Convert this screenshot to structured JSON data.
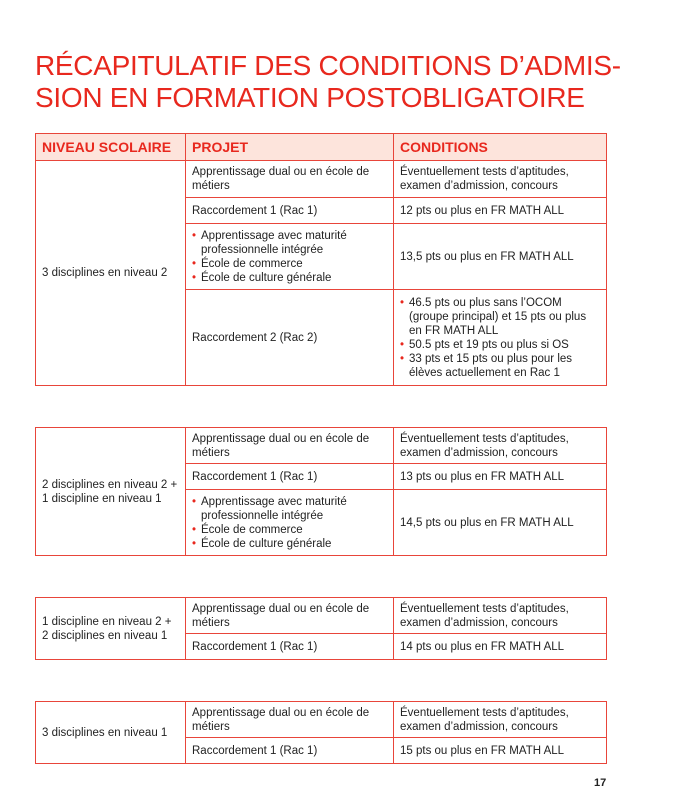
{
  "title_lines": [
    "RÉCAPITULATIF DES CONDITIONS D’ADMIS-",
    "SION EN FORMATION POSTOBLIGATOIRE"
  ],
  "headers": [
    "NIVEAU SCOLAIRE",
    "PROJET",
    "CONDITIONS"
  ],
  "common": {
    "dual": "Apprentissage dual ou en école de métiers",
    "tests": "Éventuellement tests d’aptitudes, examen d’admission, concours",
    "rac1": "Raccordement 1 (Rac 1)",
    "rac2": "Raccordement 2 (Rac 2)",
    "projects_list": [
      "Apprentissage avec maturité professionnelle intégrée",
      "École de commerce",
      "École de culture générale"
    ]
  },
  "tables": [
    {
      "level": "3 disciplines en niveau 2",
      "rac1_cond": "12 pts ou plus en FR MATH ALL",
      "list_cond": "13,5 pts ou plus en FR MATH ALL",
      "rac2_cond": [
        "46.5 pts ou plus sans l’OCOM (groupe principal) et 15 pts ou plus en FR MATH ALL",
        "50.5 pts et 19 pts ou plus si OS",
        "33 pts et 15 pts ou plus pour les élèves actuellement en Rac 1"
      ]
    },
    {
      "level": "2 disciplines en niveau 2 + 1 discipline en niveau 1",
      "rac1_cond": "13 pts ou plus en FR MATH ALL",
      "list_cond": "14,5 pts ou plus en FR MATH ALL"
    },
    {
      "level": "1 discipline en niveau 2 + 2 disciplines en niveau 1",
      "rac1_cond": "14 pts ou plus en FR MATH ALL"
    },
    {
      "level": "3 disciplines en niveau 1",
      "rac1_cond": "15 pts ou plus en FR MATH ALL"
    }
  ],
  "page_number": "17"
}
